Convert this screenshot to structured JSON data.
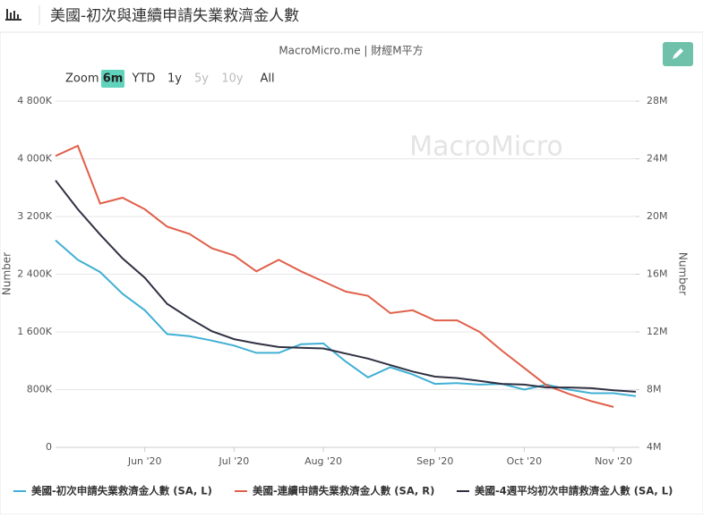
{
  "header": {
    "title": "美國-初次與連續申請失業救濟金人數"
  },
  "range_selector": {
    "label": "Zoom",
    "buttons": [
      "6m",
      "YTD",
      "1y",
      "5y",
      "10y",
      "All"
    ],
    "selected": 0,
    "disabled": [
      3,
      4
    ]
  },
  "chart_data": {
    "type": "line",
    "subtitle": "MacroMicro.me | 財經M平方",
    "watermark": "MacroMicro",
    "y_label": "Number",
    "y2_label": "Number",
    "categories": [
      null,
      null,
      null,
      null,
      "Jun '20",
      null,
      null,
      null,
      "Jul '20",
      null,
      null,
      null,
      "Aug '20",
      null,
      null,
      null,
      null,
      "Sep '20",
      null,
      null,
      null,
      "Oct '20",
      null,
      null,
      null,
      "Nov '20",
      null
    ],
    "ylim": [
      0,
      4800
    ],
    "yticks": [
      0,
      {
        "value": 800,
        "label": "800K"
      },
      {
        "value": 1600,
        "label": "1 600K"
      },
      {
        "value": 2400,
        "label": "2 400K"
      },
      {
        "value": 3200,
        "label": "3 200K"
      },
      {
        "value": 4000,
        "label": "4 000K"
      },
      {
        "value": 4800,
        "label": "4 800K"
      }
    ],
    "y2lim": [
      4,
      28
    ],
    "y2ticks": [
      {
        "value": 4,
        "label": "4M"
      },
      {
        "value": 8,
        "label": "8M"
      },
      {
        "value": 12,
        "label": "12M"
      },
      {
        "value": 16,
        "label": "16M"
      },
      {
        "value": 20,
        "label": "20M"
      },
      {
        "value": 24,
        "label": "24M"
      },
      {
        "value": 28,
        "label": "28M"
      }
    ],
    "grid": true,
    "series": [
      {
        "name": "美國-初次申請失業救濟金人數 (SA, L)",
        "color": "#41b0d4",
        "values": [
          2870,
          2600,
          2430,
          2130,
          1900,
          1570,
          1540,
          1480,
          1410,
          1310,
          1310,
          1430,
          1440,
          1190,
          970,
          1110,
          1010,
          880,
          890,
          870,
          880,
          800,
          870,
          800,
          750,
          750,
          710
        ]
      },
      {
        "name": "美國-連續申請失業救濟金人數 (SA, R)",
        "color": "#e0604a",
        "axis": "y2",
        "values": [
          24.2,
          24.9,
          20.9,
          21.3,
          20.5,
          19.3,
          18.8,
          17.8,
          17.3,
          16.2,
          17.0,
          16.2,
          15.5,
          14.8,
          14.5,
          13.3,
          13.5,
          12.8,
          12.8,
          12.0,
          10.7,
          9.5,
          8.3,
          7.7,
          7.2,
          6.8,
          null
        ]
      },
      {
        "name": "美國-4週平均初次申請救濟金人數 (SA, L)",
        "color": "#2f3142",
        "values": [
          3700,
          3300,
          2950,
          2620,
          2350,
          1990,
          1790,
          1610,
          1500,
          1440,
          1390,
          1380,
          1370,
          1300,
          1230,
          1140,
          1050,
          980,
          960,
          920,
          880,
          870,
          830,
          830,
          820,
          790,
          770
        ]
      }
    ]
  }
}
